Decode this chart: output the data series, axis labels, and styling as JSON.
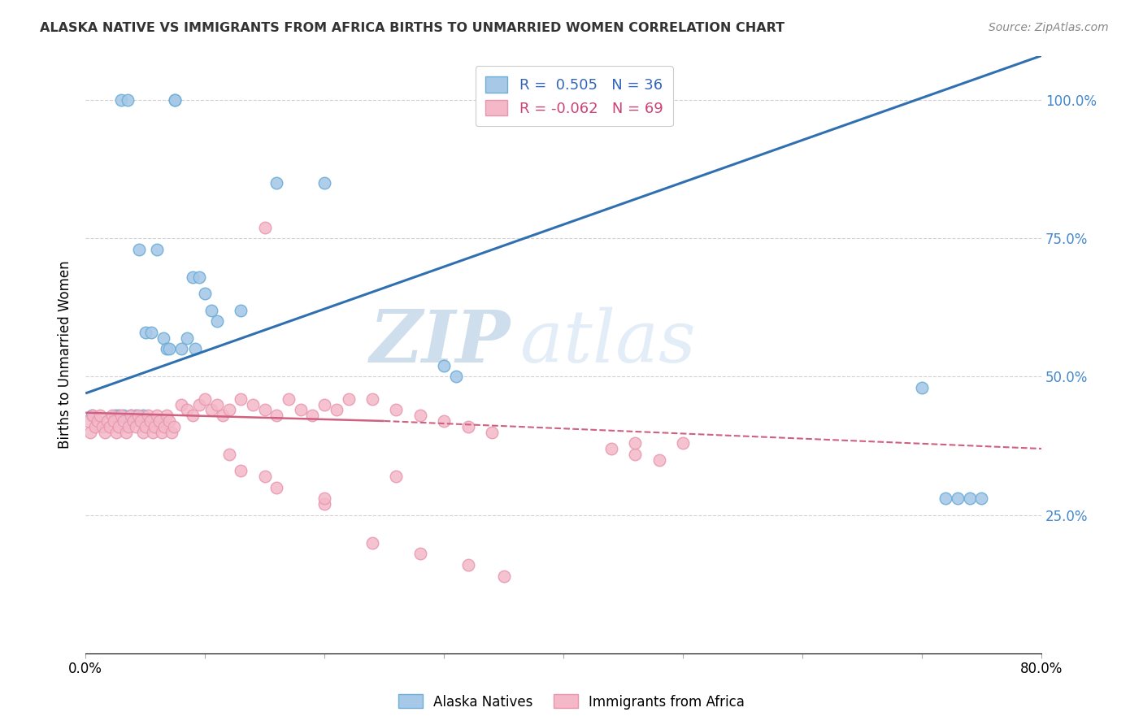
{
  "title": "ALASKA NATIVE VS IMMIGRANTS FROM AFRICA BIRTHS TO UNMARRIED WOMEN CORRELATION CHART",
  "source": "Source: ZipAtlas.com",
  "ylabel": "Births to Unmarried Women",
  "ytick_labels": [
    "25.0%",
    "50.0%",
    "75.0%",
    "100.0%"
  ],
  "ytick_values": [
    0.25,
    0.5,
    0.75,
    1.0
  ],
  "legend_label1": "Alaska Natives",
  "legend_label2": "Immigrants from Africa",
  "R1": 0.505,
  "N1": 36,
  "R2": -0.062,
  "N2": 69,
  "color_blue_fill": "#a8c8e8",
  "color_blue_edge": "#6baed6",
  "color_pink_fill": "#f4b8c8",
  "color_pink_edge": "#e896b0",
  "color_line_blue": "#3070b0",
  "color_line_pink": "#d06080",
  "watermark_zip": "ZIP",
  "watermark_atlas": "atlas",
  "xlim": [
    0.0,
    0.8
  ],
  "ylim": [
    0.0,
    1.08
  ],
  "blue_x": [
    0.03,
    0.035,
    0.075,
    0.075,
    0.16,
    0.2,
    0.045,
    0.06,
    0.09,
    0.095,
    0.1,
    0.105,
    0.11,
    0.13,
    0.05,
    0.055,
    0.065,
    0.068,
    0.07,
    0.08,
    0.085,
    0.092,
    0.005,
    0.025,
    0.028,
    0.032,
    0.038,
    0.042,
    0.048,
    0.3,
    0.31,
    0.7,
    0.72,
    0.73,
    0.74,
    0.75
  ],
  "blue_y": [
    1.0,
    1.0,
    1.0,
    1.0,
    0.85,
    0.85,
    0.73,
    0.73,
    0.68,
    0.68,
    0.65,
    0.62,
    0.6,
    0.62,
    0.58,
    0.58,
    0.57,
    0.55,
    0.55,
    0.55,
    0.57,
    0.55,
    0.43,
    0.43,
    0.43,
    0.43,
    0.43,
    0.43,
    0.43,
    0.52,
    0.5,
    0.48,
    0.28,
    0.28,
    0.28,
    0.28
  ],
  "pink_x": [
    0.002,
    0.004,
    0.006,
    0.008,
    0.01,
    0.012,
    0.014,
    0.016,
    0.018,
    0.02,
    0.022,
    0.024,
    0.026,
    0.028,
    0.03,
    0.032,
    0.034,
    0.036,
    0.038,
    0.04,
    0.042,
    0.044,
    0.046,
    0.048,
    0.05,
    0.052,
    0.054,
    0.056,
    0.058,
    0.06,
    0.062,
    0.064,
    0.066,
    0.068,
    0.07,
    0.072,
    0.074,
    0.08,
    0.085,
    0.09,
    0.095,
    0.1,
    0.105,
    0.11,
    0.115,
    0.12,
    0.13,
    0.14,
    0.15,
    0.16,
    0.17,
    0.18,
    0.19,
    0.2,
    0.21,
    0.22,
    0.24,
    0.26,
    0.28,
    0.3,
    0.32,
    0.34,
    0.44,
    0.46,
    0.48,
    0.5,
    0.15,
    0.2,
    0.26
  ],
  "pink_y": [
    0.42,
    0.4,
    0.43,
    0.41,
    0.42,
    0.43,
    0.41,
    0.4,
    0.42,
    0.41,
    0.43,
    0.42,
    0.4,
    0.41,
    0.43,
    0.42,
    0.4,
    0.41,
    0.43,
    0.42,
    0.41,
    0.43,
    0.42,
    0.4,
    0.41,
    0.43,
    0.42,
    0.4,
    0.41,
    0.43,
    0.42,
    0.4,
    0.41,
    0.43,
    0.42,
    0.4,
    0.41,
    0.45,
    0.44,
    0.43,
    0.45,
    0.46,
    0.44,
    0.45,
    0.43,
    0.44,
    0.46,
    0.45,
    0.44,
    0.43,
    0.46,
    0.44,
    0.43,
    0.45,
    0.44,
    0.46,
    0.46,
    0.44,
    0.43,
    0.42,
    0.41,
    0.4,
    0.37,
    0.36,
    0.35,
    0.38,
    0.77,
    0.27,
    0.32
  ],
  "pink_low_x": [
    0.12,
    0.13,
    0.15,
    0.16,
    0.2,
    0.24,
    0.28,
    0.32,
    0.35,
    0.46
  ],
  "pink_low_y": [
    0.36,
    0.33,
    0.32,
    0.3,
    0.28,
    0.2,
    0.18,
    0.16,
    0.14,
    0.38
  ],
  "line_blue_x0": 0.0,
  "line_blue_y0": 0.47,
  "line_blue_x1": 0.8,
  "line_blue_y1": 1.08,
  "line_pink_solid_x0": 0.0,
  "line_pink_solid_y0": 0.435,
  "line_pink_solid_x1": 0.25,
  "line_pink_solid_y1": 0.42,
  "line_pink_dash_x0": 0.25,
  "line_pink_dash_y0": 0.42,
  "line_pink_dash_x1": 0.8,
  "line_pink_dash_y1": 0.37
}
